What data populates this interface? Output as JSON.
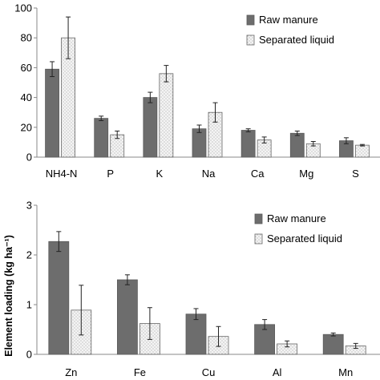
{
  "chart_data": [
    {
      "type": "bar",
      "categories": [
        "NH4-N",
        "P",
        "K",
        "Na",
        "Ca",
        "Mg",
        "S"
      ],
      "series": [
        {
          "name": "Raw manure",
          "values": [
            59,
            26,
            40,
            19,
            18,
            16,
            11
          ],
          "errors": [
            5,
            1.5,
            3.5,
            2.5,
            1,
            1.5,
            2
          ],
          "color": "#6d6d6d",
          "pattern": "solid"
        },
        {
          "name": "Separated liquid",
          "values": [
            80,
            15,
            56,
            30,
            11.5,
            9,
            8
          ],
          "errors": [
            14,
            2.5,
            5.5,
            6.5,
            2,
            1.5,
            0.5
          ],
          "color": "#f2f2f2",
          "pattern": "dotted"
        }
      ],
      "ylim": [
        0,
        100
      ],
      "yticks": [
        "0",
        "20",
        "40",
        "60",
        "80",
        "100"
      ],
      "ylabel": "",
      "legend": "top-right",
      "grid": false
    },
    {
      "type": "bar",
      "categories": [
        "Zn",
        "Fe",
        "Cu",
        "Al",
        "Mn"
      ],
      "series": [
        {
          "name": "Raw manure",
          "values": [
            2.27,
            1.5,
            0.81,
            0.6,
            0.4
          ],
          "errors": [
            0.2,
            0.1,
            0.11,
            0.1,
            0.03
          ],
          "color": "#6d6d6d",
          "pattern": "solid"
        },
        {
          "name": "Separated liquid",
          "values": [
            0.89,
            0.62,
            0.36,
            0.21,
            0.17
          ],
          "errors": [
            0.5,
            0.32,
            0.2,
            0.06,
            0.05
          ],
          "color": "#f2f2f2",
          "pattern": "dotted"
        }
      ],
      "ylim": [
        0,
        3
      ],
      "yticks": [
        "0",
        "1",
        "2",
        "3"
      ],
      "ylabel": "Element loading (kg ha⁻¹)",
      "legend": "top-right",
      "grid": false
    }
  ]
}
